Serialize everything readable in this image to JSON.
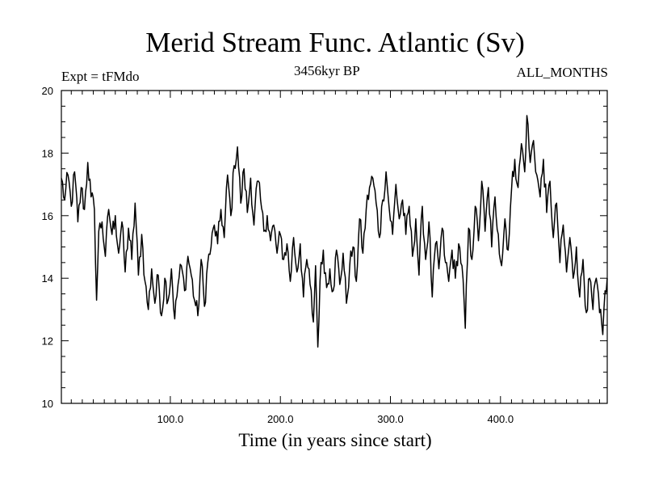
{
  "chart_data": {
    "type": "line",
    "title": "Merid Stream Func. Atlantic (Sv)",
    "left_label": "Expt = tFMdo",
    "subtitle": "3456kyr BP",
    "right_label": "ALL_MONTHS",
    "xlabel": "Time (in years since start)",
    "ylabel": "",
    "xlim": [
      1,
      497
    ],
    "ylim": [
      10,
      20
    ],
    "xticks": [
      100,
      200,
      300,
      400
    ],
    "xtick_labels": [
      "100.0",
      "200.0",
      "300.0",
      "400.0"
    ],
    "yticks": [
      10,
      12,
      14,
      16,
      18,
      20
    ],
    "ytick_labels": [
      "10",
      "12",
      "14",
      "16",
      "18",
      "20"
    ],
    "series": [
      {
        "name": "Merid Stream Func. Atlantic",
        "keypoints": [
          [
            1,
            17.2
          ],
          [
            4,
            16.5
          ],
          [
            7,
            17.3
          ],
          [
            10,
            16.3
          ],
          [
            13,
            17.4
          ],
          [
            16,
            15.8
          ],
          [
            19,
            16.9
          ],
          [
            22,
            16.2
          ],
          [
            25,
            17.7
          ],
          [
            28,
            16.6
          ],
          [
            31,
            16.2
          ],
          [
            33,
            13.3
          ],
          [
            35,
            15.5
          ],
          [
            38,
            15.8
          ],
          [
            41,
            14.7
          ],
          [
            44,
            16.2
          ],
          [
            47,
            15.4
          ],
          [
            50,
            16.0
          ],
          [
            53,
            14.8
          ],
          [
            56,
            15.8
          ],
          [
            59,
            14.2
          ],
          [
            62,
            15.6
          ],
          [
            65,
            14.6
          ],
          [
            68,
            16.4
          ],
          [
            71,
            14.1
          ],
          [
            74,
            15.4
          ],
          [
            77,
            13.9
          ],
          [
            80,
            13.0
          ],
          [
            83,
            14.3
          ],
          [
            86,
            13.2
          ],
          [
            89,
            14.1
          ],
          [
            92,
            12.8
          ],
          [
            95,
            14.0
          ],
          [
            98,
            13.3
          ],
          [
            101,
            14.3
          ],
          [
            104,
            12.7
          ],
          [
            107,
            13.8
          ],
          [
            110,
            14.4
          ],
          [
            113,
            13.6
          ],
          [
            116,
            14.7
          ],
          [
            119,
            14.1
          ],
          [
            122,
            13.3
          ],
          [
            125,
            12.8
          ],
          [
            128,
            14.6
          ],
          [
            131,
            13.1
          ],
          [
            134,
            14.5
          ],
          [
            137,
            15.0
          ],
          [
            140,
            15.7
          ],
          [
            143,
            15.1
          ],
          [
            146,
            16.2
          ],
          [
            149,
            15.3
          ],
          [
            152,
            17.3
          ],
          [
            155,
            16.0
          ],
          [
            158,
            17.6
          ],
          [
            161,
            18.2
          ],
          [
            164,
            16.4
          ],
          [
            167,
            17.5
          ],
          [
            170,
            16.1
          ],
          [
            173,
            17.2
          ],
          [
            176,
            15.7
          ],
          [
            179,
            17.1
          ],
          [
            182,
            16.5
          ],
          [
            185,
            15.5
          ],
          [
            188,
            16.0
          ],
          [
            191,
            15.2
          ],
          [
            194,
            15.7
          ],
          [
            197,
            14.8
          ],
          [
            200,
            15.4
          ],
          [
            203,
            14.6
          ],
          [
            206,
            15.1
          ],
          [
            209,
            13.9
          ],
          [
            212,
            15.3
          ],
          [
            215,
            14.2
          ],
          [
            218,
            15.1
          ],
          [
            221,
            13.4
          ],
          [
            224,
            14.6
          ],
          [
            227,
            13.8
          ],
          [
            230,
            12.6
          ],
          [
            232,
            14.4
          ],
          [
            234,
            11.8
          ],
          [
            236,
            13.9
          ],
          [
            239,
            14.9
          ],
          [
            242,
            13.7
          ],
          [
            245,
            14.3
          ],
          [
            248,
            13.6
          ],
          [
            251,
            14.9
          ],
          [
            254,
            13.8
          ],
          [
            257,
            14.8
          ],
          [
            260,
            13.2
          ],
          [
            263,
            14.4
          ],
          [
            266,
            15.0
          ],
          [
            269,
            13.9
          ],
          [
            272,
            15.9
          ],
          [
            275,
            14.8
          ],
          [
            278,
            16.2
          ],
          [
            281,
            16.9
          ],
          [
            284,
            17.2
          ],
          [
            287,
            16.4
          ],
          [
            290,
            15.3
          ],
          [
            293,
            16.5
          ],
          [
            296,
            17.4
          ],
          [
            299,
            16.2
          ],
          [
            302,
            15.4
          ],
          [
            305,
            17.0
          ],
          [
            308,
            15.9
          ],
          [
            311,
            16.5
          ],
          [
            314,
            15.4
          ],
          [
            317,
            16.3
          ],
          [
            320,
            14.7
          ],
          [
            323,
            15.9
          ],
          [
            326,
            14.1
          ],
          [
            329,
            16.3
          ],
          [
            332,
            14.6
          ],
          [
            335,
            15.8
          ],
          [
            338,
            13.4
          ],
          [
            341,
            15.1
          ],
          [
            344,
            14.3
          ],
          [
            347,
            15.6
          ],
          [
            350,
            14.5
          ],
          [
            353,
            13.9
          ],
          [
            356,
            14.9
          ],
          [
            359,
            14.0
          ],
          [
            362,
            15.1
          ],
          [
            365,
            14.4
          ],
          [
            368,
            12.4
          ],
          [
            371,
            15.6
          ],
          [
            374,
            14.6
          ],
          [
            377,
            16.3
          ],
          [
            380,
            15.2
          ],
          [
            383,
            17.1
          ],
          [
            386,
            15.5
          ],
          [
            389,
            16.9
          ],
          [
            392,
            15.0
          ],
          [
            395,
            16.6
          ],
          [
            398,
            15.4
          ],
          [
            401,
            14.4
          ],
          [
            404,
            15.9
          ],
          [
            407,
            14.9
          ],
          [
            410,
            16.8
          ],
          [
            413,
            17.8
          ],
          [
            416,
            16.9
          ],
          [
            419,
            18.3
          ],
          [
            422,
            17.4
          ],
          [
            424,
            19.2
          ],
          [
            427,
            17.7
          ],
          [
            430,
            18.4
          ],
          [
            433,
            17.3
          ],
          [
            436,
            16.6
          ],
          [
            439,
            17.8
          ],
          [
            442,
            16.1
          ],
          [
            445,
            17.1
          ],
          [
            448,
            15.3
          ],
          [
            451,
            16.4
          ],
          [
            454,
            14.5
          ],
          [
            457,
            15.7
          ],
          [
            460,
            14.2
          ],
          [
            463,
            15.3
          ],
          [
            466,
            14.0
          ],
          [
            469,
            15.0
          ],
          [
            472,
            13.4
          ],
          [
            475,
            14.6
          ],
          [
            478,
            12.9
          ],
          [
            481,
            14.0
          ],
          [
            484,
            13.0
          ],
          [
            487,
            14.0
          ],
          [
            490,
            12.9
          ],
          [
            493,
            12.2
          ],
          [
            495,
            13.6
          ],
          [
            497,
            14.0
          ]
        ]
      }
    ]
  }
}
